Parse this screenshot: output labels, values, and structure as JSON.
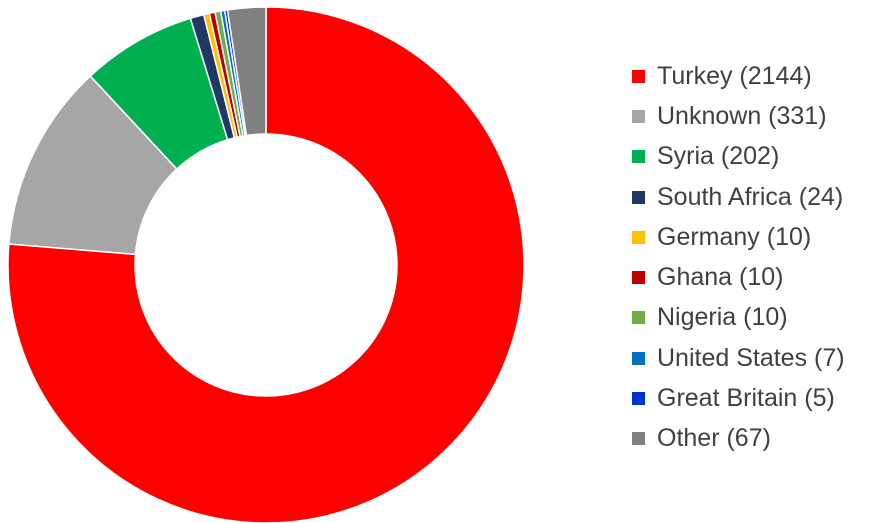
{
  "chart_data": {
    "type": "pie",
    "variant": "donut",
    "title": "",
    "legend_position": "right",
    "series": [
      {
        "label": "Turkey (2144)",
        "name": "Turkey",
        "value": 2144,
        "color": "#ff0000"
      },
      {
        "label": "Unknown (331)",
        "name": "Unknown",
        "value": 331,
        "color": "#a6a6a6"
      },
      {
        "label": "Syria (202)",
        "name": "Syria",
        "value": 202,
        "color": "#00b050"
      },
      {
        "label": "South Africa (24)",
        "name": "South Africa",
        "value": 24,
        "color": "#1f3864"
      },
      {
        "label": "Germany (10)",
        "name": "Germany",
        "value": 10,
        "color": "#ffc000"
      },
      {
        "label": "Ghana (10)",
        "name": "Ghana",
        "value": 10,
        "color": "#c00000"
      },
      {
        "label": "Nigeria (10)",
        "name": "Nigeria",
        "value": 10,
        "color": "#70ad47"
      },
      {
        "label": "United States (7)",
        "name": "United States",
        "value": 7,
        "color": "#0070c0"
      },
      {
        "label": "Great Britain (5)",
        "name": "Great Britain",
        "value": 5,
        "color": "#0033cc"
      },
      {
        "label": "Other (67)",
        "name": "Other",
        "value": 67,
        "color": "#808080"
      }
    ]
  }
}
